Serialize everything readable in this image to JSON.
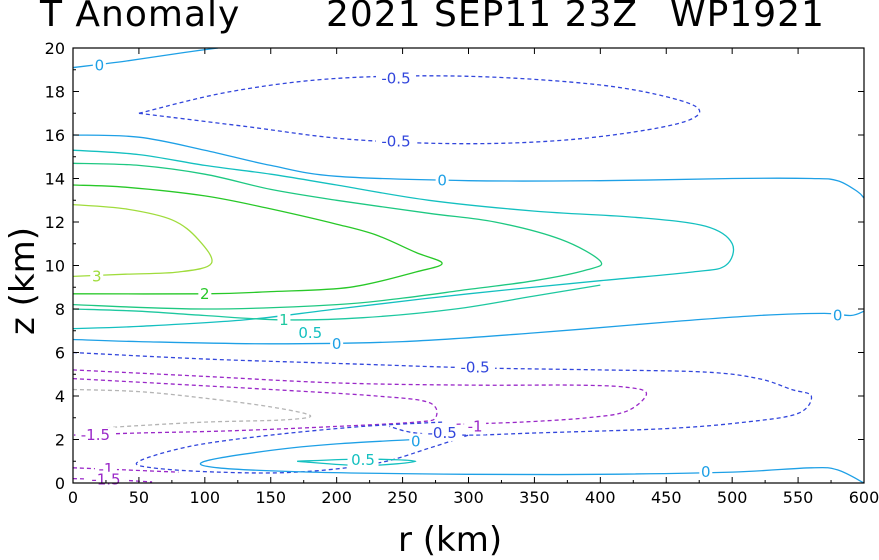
{
  "chart_data": {
    "type": "contour",
    "title": {
      "variable": "T Anomaly",
      "date": "2021 SEP11 23Z",
      "storm": "WP1921"
    },
    "xlabel": "r (km)",
    "ylabel": "z (km)",
    "xlim": [
      0,
      600
    ],
    "ylim": [
      0,
      20
    ],
    "xticks": [
      "0",
      "50",
      "100",
      "150",
      "200",
      "250",
      "300",
      "350",
      "400",
      "450",
      "500",
      "550",
      "600"
    ],
    "yticks": [
      "0",
      "2",
      "4",
      "6",
      "8",
      "10",
      "12",
      "14",
      "16",
      "18",
      "20"
    ],
    "colors": {
      "3": "#a0dc3c",
      "2": "#28c828",
      "1.5": "#1ec882",
      "1": "#1ec8a0",
      "0.5": "#14c0c0",
      "0": "#1ea0e6",
      "-0.5": "#3246dc",
      "-1": "#9a28c8",
      "-1.5": "#9a28c8",
      "-2": "#b4b4b4"
    },
    "contours": [
      {
        "level": 0,
        "points": [
          [
            0,
            19.1
          ],
          [
            40,
            19.4
          ],
          [
            85,
            19.8
          ],
          [
            110,
            20
          ]
        ]
      },
      {
        "level": -0.5,
        "points": [
          [
            50,
            17.0
          ],
          [
            120,
            18.0
          ],
          [
            200,
            18.6
          ],
          [
            300,
            18.7
          ],
          [
            400,
            18.3
          ],
          [
            460,
            17.6
          ],
          [
            475,
            17.0
          ],
          [
            450,
            16.4
          ],
          [
            380,
            15.8
          ],
          [
            300,
            15.6
          ],
          [
            210,
            15.8
          ],
          [
            130,
            16.4
          ],
          [
            50,
            17.0
          ]
        ]
      },
      {
        "level": 0,
        "points": [
          [
            0,
            16.0
          ],
          [
            50,
            15.9
          ],
          [
            100,
            15.3
          ],
          [
            150,
            14.6
          ],
          [
            200,
            14.1
          ],
          [
            300,
            13.9
          ],
          [
            400,
            13.9
          ],
          [
            500,
            14.0
          ],
          [
            560,
            14.0
          ],
          [
            580,
            13.9
          ],
          [
            595,
            13.4
          ],
          [
            600,
            13.1
          ]
        ]
      },
      {
        "level": 0.5,
        "points": [
          [
            0,
            15.3
          ],
          [
            50,
            15.1
          ],
          [
            100,
            14.6
          ],
          [
            150,
            14.2
          ],
          [
            200,
            13.7
          ],
          [
            270,
            13.0
          ],
          [
            350,
            12.5
          ],
          [
            430,
            12.2
          ],
          [
            480,
            11.8
          ],
          [
            500,
            11.0
          ],
          [
            495,
            10.0
          ],
          [
            470,
            9.7
          ],
          [
            400,
            9.3
          ],
          [
            300,
            8.7
          ],
          [
            200,
            8.0
          ],
          [
            130,
            7.5
          ],
          [
            50,
            7.2
          ],
          [
            0,
            7.1
          ]
        ]
      },
      {
        "level": 1.5,
        "points": [
          [
            0,
            14.7
          ],
          [
            50,
            14.6
          ],
          [
            100,
            14.2
          ],
          [
            150,
            13.5
          ],
          [
            200,
            13.0
          ],
          [
            270,
            12.4
          ],
          [
            320,
            12.0
          ],
          [
            370,
            11.2
          ],
          [
            400,
            10.2
          ],
          [
            390,
            9.8
          ],
          [
            350,
            9.3
          ],
          [
            300,
            8.9
          ],
          [
            250,
            8.5
          ],
          [
            200,
            8.2
          ],
          [
            100,
            8.0
          ],
          [
            0,
            8.2
          ]
        ]
      },
      {
        "level": 2,
        "points": [
          [
            0,
            13.7
          ],
          [
            40,
            13.6
          ],
          [
            100,
            13.2
          ],
          [
            150,
            12.6
          ],
          [
            200,
            11.9
          ],
          [
            230,
            11.4
          ],
          [
            260,
            10.6
          ],
          [
            280,
            10.1
          ],
          [
            260,
            9.7
          ],
          [
            210,
            9.0
          ],
          [
            150,
            8.8
          ],
          [
            100,
            8.7
          ],
          [
            0,
            8.7
          ]
        ]
      },
      {
        "level": 3,
        "points": [
          [
            0,
            12.8
          ],
          [
            40,
            12.6
          ],
          [
            75,
            12.1
          ],
          [
            95,
            11.2
          ],
          [
            105,
            10.1
          ],
          [
            80,
            9.7
          ],
          [
            40,
            9.6
          ],
          [
            0,
            9.5
          ]
        ]
      },
      {
        "level": 1,
        "points": [
          [
            0,
            8.0
          ],
          [
            50,
            7.9
          ],
          [
            100,
            7.7
          ],
          [
            160,
            7.5
          ],
          [
            220,
            7.6
          ],
          [
            290,
            8.0
          ],
          [
            350,
            8.6
          ],
          [
            400,
            9.1
          ]
        ]
      },
      {
        "level": 0,
        "points": [
          [
            0,
            6.6
          ],
          [
            50,
            6.5
          ],
          [
            150,
            6.4
          ],
          [
            250,
            6.5
          ],
          [
            350,
            6.9
          ],
          [
            450,
            7.4
          ],
          [
            520,
            7.7
          ],
          [
            570,
            7.8
          ],
          [
            590,
            7.7
          ],
          [
            600,
            7.9
          ]
        ]
      },
      {
        "level": -0.5,
        "points": [
          [
            0,
            6.0
          ],
          [
            100,
            5.7
          ],
          [
            200,
            5.5
          ],
          [
            300,
            5.3
          ],
          [
            400,
            5.2
          ],
          [
            480,
            5.1
          ],
          [
            520,
            4.8
          ],
          [
            545,
            4.3
          ],
          [
            560,
            4.0
          ],
          [
            550,
            3.2
          ],
          [
            510,
            2.8
          ],
          [
            450,
            2.5
          ],
          [
            350,
            2.3
          ],
          [
            300,
            2.2
          ],
          [
            260,
            2.3
          ],
          [
            240,
            2.6
          ]
        ]
      },
      {
        "level": -1,
        "points": [
          [
            0,
            5.2
          ],
          [
            100,
            4.9
          ],
          [
            200,
            4.6
          ],
          [
            300,
            4.5
          ],
          [
            380,
            4.5
          ],
          [
            420,
            4.4
          ],
          [
            435,
            4.1
          ],
          [
            420,
            3.3
          ],
          [
            390,
            3.0
          ],
          [
            340,
            2.8
          ],
          [
            290,
            2.7
          ]
        ]
      },
      {
        "level": -1.5,
        "points": [
          [
            0,
            4.8
          ],
          [
            60,
            4.6
          ],
          [
            150,
            4.3
          ],
          [
            230,
            4.0
          ],
          [
            270,
            3.7
          ],
          [
            275,
            3.0
          ],
          [
            260,
            2.8
          ],
          [
            200,
            2.6
          ],
          [
            120,
            2.4
          ],
          [
            50,
            2.3
          ],
          [
            0,
            2.2
          ]
        ]
      },
      {
        "level": -2,
        "points": [
          [
            0,
            4.3
          ],
          [
            50,
            4.2
          ],
          [
            100,
            3.9
          ],
          [
            150,
            3.5
          ],
          [
            180,
            3.1
          ],
          [
            160,
            2.9
          ],
          [
            100,
            2.8
          ],
          [
            40,
            2.6
          ],
          [
            20,
            2.5
          ]
        ]
      },
      {
        "level": -0.5,
        "points": [
          [
            280,
            2.8
          ],
          [
            220,
            2.6
          ],
          [
            150,
            2.2
          ],
          [
            90,
            1.7
          ],
          [
            50,
            1.0
          ],
          [
            60,
            0.7
          ],
          [
            110,
            0.5
          ],
          [
            170,
            0.5
          ],
          [
            230,
            0.9
          ],
          [
            270,
            1.6
          ],
          [
            300,
            2.2
          ]
        ]
      },
      {
        "level": 0,
        "points": [
          [
            260,
            2.0
          ],
          [
            200,
            1.8
          ],
          [
            150,
            1.5
          ],
          [
            100,
            1.0
          ],
          [
            110,
            0.7
          ],
          [
            180,
            0.5
          ],
          [
            300,
            0.4
          ],
          [
            400,
            0.4
          ],
          [
            500,
            0.5
          ],
          [
            560,
            0.7
          ],
          [
            580,
            0.6
          ],
          [
            600,
            0.0
          ]
        ]
      },
      {
        "level": 0.5,
        "points": [
          [
            170,
            1.0
          ],
          [
            220,
            1.1
          ],
          [
            260,
            1.0
          ],
          [
            220,
            0.8
          ],
          [
            170,
            1.0
          ]
        ]
      },
      {
        "level": -1,
        "points": [
          [
            0,
            0.7
          ],
          [
            40,
            0.6
          ],
          [
            80,
            0.5
          ]
        ]
      },
      {
        "level": -1.5,
        "points": [
          [
            0,
            0.2
          ],
          [
            30,
            0.15
          ],
          [
            60,
            0.05
          ]
        ]
      }
    ],
    "contour_labels": [
      {
        "text": "0",
        "level": 0,
        "x": 20,
        "y": 19.2
      },
      {
        "text": "-0.5",
        "level": -0.5,
        "x": 245,
        "y": 18.6
      },
      {
        "text": "-0.5",
        "level": -0.5,
        "x": 245,
        "y": 15.7
      },
      {
        "text": "0",
        "level": 0,
        "x": 280,
        "y": 13.9
      },
      {
        "text": "3",
        "level": 3,
        "x": 18,
        "y": 9.5
      },
      {
        "text": "2",
        "level": 2,
        "x": 100,
        "y": 8.7
      },
      {
        "text": "1",
        "level": 1,
        "x": 160,
        "y": 7.5
      },
      {
        "text": "0.5",
        "level": 0.5,
        "x": 180,
        "y": 6.9
      },
      {
        "text": "0",
        "level": 0,
        "x": 200,
        "y": 6.4
      },
      {
        "text": "0",
        "level": 0,
        "x": 580,
        "y": 7.7
      },
      {
        "text": "-0.5",
        "level": -0.5,
        "x": 305,
        "y": 5.3
      },
      {
        "text": "-1",
        "level": -1,
        "x": 305,
        "y": 2.6
      },
      {
        "text": "-0.5",
        "level": -0.5,
        "x": 280,
        "y": 2.3
      },
      {
        "text": "0",
        "level": 0,
        "x": 260,
        "y": 1.9
      },
      {
        "text": "0.5",
        "level": 0.5,
        "x": 220,
        "y": 1.05
      },
      {
        "text": "0",
        "level": 0,
        "x": 480,
        "y": 0.5
      },
      {
        "text": "-1.5",
        "level": -1.5,
        "x": 17,
        "y": 2.2
      },
      {
        "text": "-1",
        "level": -1,
        "x": 25,
        "y": 0.65
      },
      {
        "text": "-1.5",
        "level": -1.5,
        "x": 25,
        "y": 0.15
      }
    ]
  }
}
